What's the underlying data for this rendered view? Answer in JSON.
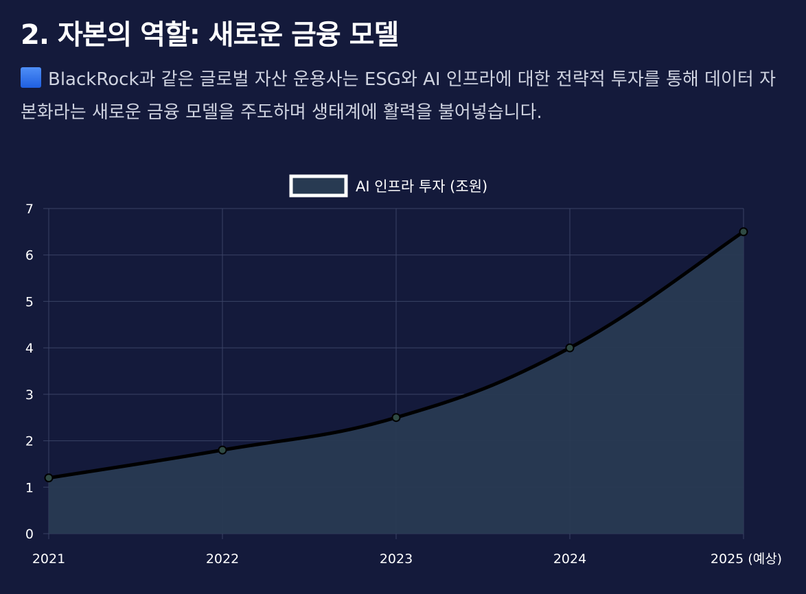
{
  "header": {
    "title": "2. 자본의 역할: 새로운 금융 모델",
    "icon": "blue-square-icon",
    "description": "BlackRock과 같은 글로벌 자산 운용사는 ESG와 AI 인프라에 대한 전략적 투자를 통해 데이터 자본화라는 새로운 금융 모델을 주도하며 생태계에 활력을 불어넣습니다."
  },
  "chart_data": {
    "type": "area",
    "categories": [
      "2021",
      "2022",
      "2023",
      "2024",
      "2025 (예상)"
    ],
    "series": [
      {
        "name": "AI 인프라 투자 (조원)",
        "values": [
          1.2,
          1.8,
          2.5,
          4.0,
          6.5
        ]
      }
    ],
    "ylim": [
      0,
      7
    ],
    "yticks": [
      "0",
      "1",
      "2",
      "3",
      "4",
      "5",
      "6",
      "7"
    ],
    "grid": true,
    "legend": "top-center",
    "colors": {
      "fill": "#283a52",
      "line": "#000000",
      "grid": "#3a4366",
      "legend_border": "#ffffff"
    }
  }
}
